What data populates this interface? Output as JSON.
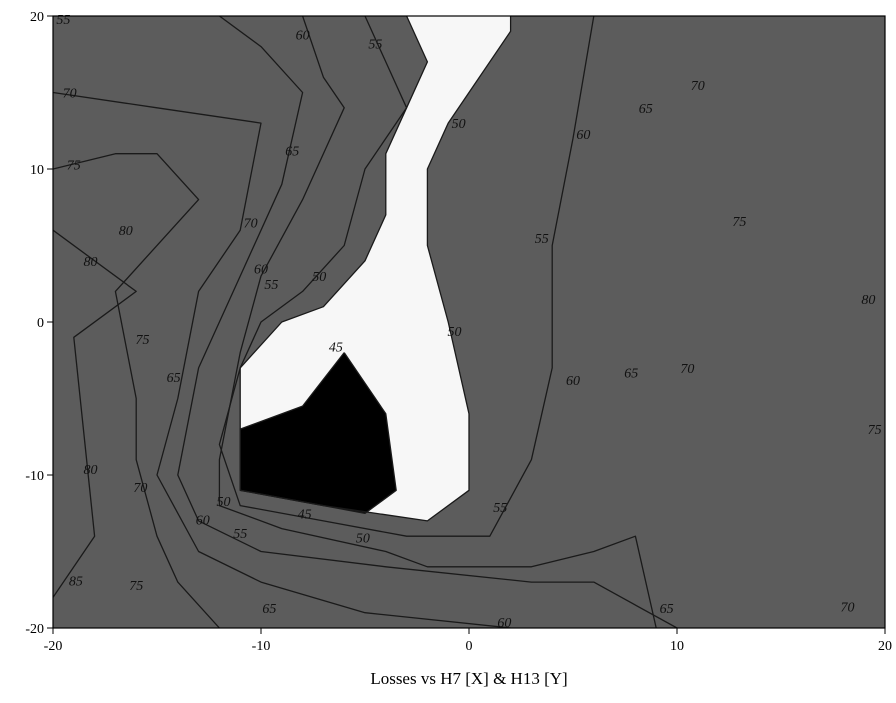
{
  "chart_data": {
    "type": "contour",
    "title": "",
    "xlabel": "Losses vs H7 [X] & H13 [Y]",
    "ylabel": "",
    "xlim": [
      -20,
      20
    ],
    "ylim": [
      -20,
      20
    ],
    "x_ticks": [
      {
        "value": -20,
        "label": "-20"
      },
      {
        "value": -10,
        "label": "-10"
      },
      {
        "value": 0,
        "label": "0"
      },
      {
        "value": 10,
        "label": "10"
      },
      {
        "value": 20,
        "label": "20"
      }
    ],
    "y_ticks": [
      {
        "value": 20,
        "label": "20"
      },
      {
        "value": 10,
        "label": "10"
      },
      {
        "value": 0,
        "label": "0"
      },
      {
        "value": -10,
        "label": "-10"
      },
      {
        "value": -20,
        "label": "-20"
      }
    ],
    "grid": false,
    "legend": "none",
    "levels": [
      45,
      50,
      55,
      60,
      65,
      70,
      75,
      80,
      85
    ],
    "level_colors": [
      "#000000",
      "#5c5c5c",
      "#747474",
      "#8e8e8e",
      "#a9a9a9",
      "#c2c2c2",
      "#d6d6d6",
      "#e8e8e8",
      "#f7f7f7"
    ],
    "contours": [
      {
        "level": 80,
        "points": [
          [
            -20,
            6
          ],
          [
            -16,
            2
          ],
          [
            -19,
            -1
          ],
          [
            -18,
            -14
          ],
          [
            -20,
            -18
          ]
        ]
      },
      {
        "level": 75,
        "points": [
          [
            -20,
            10
          ],
          [
            -17,
            11
          ],
          [
            -15,
            11
          ],
          [
            -13,
            8
          ],
          [
            -17,
            2
          ],
          [
            -16,
            -5
          ],
          [
            -16,
            -9
          ],
          [
            -15,
            -14
          ],
          [
            -14,
            -17
          ],
          [
            -12,
            -20
          ]
        ]
      },
      {
        "level": 70,
        "points": [
          [
            -20,
            15
          ],
          [
            -15,
            14
          ],
          [
            -10,
            13
          ],
          [
            -11,
            6
          ],
          [
            -13,
            2
          ],
          [
            -14,
            -5
          ],
          [
            -15,
            -10
          ],
          [
            -13,
            -15
          ],
          [
            -10,
            -17
          ],
          [
            -5,
            -19
          ],
          [
            2,
            -20
          ]
        ]
      },
      {
        "level": 65,
        "points": [
          [
            -12,
            20
          ],
          [
            -10,
            18
          ],
          [
            -8,
            15
          ],
          [
            -9,
            9
          ],
          [
            -11,
            3
          ],
          [
            -13,
            -3
          ],
          [
            -14,
            -10
          ],
          [
            -13,
            -13
          ],
          [
            -10,
            -15
          ],
          [
            -4,
            -16
          ],
          [
            3,
            -17
          ],
          [
            6,
            -17
          ],
          [
            10,
            -20
          ]
        ]
      },
      {
        "level": 60,
        "points": [
          [
            -8,
            20
          ],
          [
            -7,
            16
          ],
          [
            -6,
            14
          ],
          [
            -8,
            8
          ],
          [
            -10,
            3
          ],
          [
            -11,
            -2
          ],
          [
            -12,
            -9
          ],
          [
            -12,
            -12
          ],
          [
            -9,
            -13.5
          ],
          [
            -4,
            -15
          ],
          [
            -2,
            -16
          ],
          [
            3,
            -16
          ],
          [
            6,
            -15
          ],
          [
            8,
            -14
          ],
          [
            9,
            -20
          ]
        ]
      },
      {
        "level": 55,
        "points": [
          [
            -5,
            20
          ],
          [
            -4,
            17
          ],
          [
            -3,
            14
          ],
          [
            -5,
            10
          ],
          [
            -6,
            5
          ],
          [
            -8,
            2
          ],
          [
            -10,
            0
          ],
          [
            -11,
            -3
          ],
          [
            -12,
            -8
          ],
          [
            -11,
            -12
          ],
          [
            -7,
            -13
          ],
          [
            -3,
            -14
          ],
          [
            1,
            -14
          ],
          [
            3,
            -9
          ],
          [
            4,
            -3
          ],
          [
            4,
            5
          ],
          [
            5,
            12
          ],
          [
            6,
            20
          ]
        ]
      },
      {
        "level": 50,
        "points": [
          [
            -3,
            20
          ],
          [
            -2,
            17
          ],
          [
            -3,
            14
          ],
          [
            -4,
            11
          ],
          [
            -4,
            7
          ],
          [
            -5,
            4
          ],
          [
            -7,
            1
          ],
          [
            -9,
            0
          ],
          [
            -11,
            -3
          ],
          [
            -11,
            -8
          ],
          [
            -11,
            -11
          ],
          [
            -7,
            -12
          ],
          [
            -2,
            -13
          ],
          [
            0,
            -11
          ],
          [
            0,
            -6
          ],
          [
            -1,
            0
          ],
          [
            -2,
            5
          ],
          [
            -2,
            10
          ],
          [
            -1,
            13
          ],
          [
            0,
            15
          ],
          [
            2,
            19
          ],
          [
            2,
            20
          ]
        ]
      },
      {
        "level": 45,
        "points": [
          [
            -6,
            -2
          ],
          [
            -4,
            -6
          ],
          [
            -3.5,
            -11
          ],
          [
            -5,
            -12.5
          ],
          [
            -7,
            -12
          ],
          [
            -11,
            -11
          ],
          [
            -11,
            -7
          ],
          [
            -8,
            -5.5
          ],
          [
            -6,
            -2
          ]
        ]
      }
    ],
    "contour_labels": [
      {
        "text": "55",
        "x": -19.5,
        "y": 19.8
      },
      {
        "text": "60",
        "x": -8,
        "y": 18.8
      },
      {
        "text": "55",
        "x": -4.5,
        "y": 18.2
      },
      {
        "text": "70",
        "x": -19.2,
        "y": 15
      },
      {
        "text": "50",
        "x": -0.5,
        "y": 13
      },
      {
        "text": "65",
        "x": -8.5,
        "y": 11.2
      },
      {
        "text": "60",
        "x": 5.5,
        "y": 12.3
      },
      {
        "text": "65",
        "x": 8.5,
        "y": 14
      },
      {
        "text": "70",
        "x": 11,
        "y": 15.5
      },
      {
        "text": "75",
        "x": -19,
        "y": 10.3
      },
      {
        "text": "80",
        "x": -16.5,
        "y": 6
      },
      {
        "text": "70",
        "x": -10.5,
        "y": 6.5
      },
      {
        "text": "75",
        "x": 13,
        "y": 6.6
      },
      {
        "text": "55",
        "x": 3.5,
        "y": 5.5
      },
      {
        "text": "80",
        "x": -18.2,
        "y": 4
      },
      {
        "text": "60",
        "x": -10,
        "y": 3.5
      },
      {
        "text": "55",
        "x": -9.5,
        "y": 2.5
      },
      {
        "text": "50",
        "x": -7.2,
        "y": 3
      },
      {
        "text": "80",
        "x": 19.2,
        "y": 1.5
      },
      {
        "text": "75",
        "x": -15.7,
        "y": -1.1
      },
      {
        "text": "50",
        "x": -0.7,
        "y": -0.6
      },
      {
        "text": "45",
        "x": -6.4,
        "y": -1.6
      },
      {
        "text": "65",
        "x": -14.2,
        "y": -3.6
      },
      {
        "text": "60",
        "x": 5,
        "y": -3.8
      },
      {
        "text": "65",
        "x": 7.8,
        "y": -3.3
      },
      {
        "text": "70",
        "x": 10.5,
        "y": -3
      },
      {
        "text": "75",
        "x": 19.5,
        "y": -7
      },
      {
        "text": "80",
        "x": -18.2,
        "y": -9.6
      },
      {
        "text": "70",
        "x": -15.8,
        "y": -10.8
      },
      {
        "text": "50",
        "x": -11.8,
        "y": -11.7
      },
      {
        "text": "45",
        "x": -7.9,
        "y": -12.5
      },
      {
        "text": "55",
        "x": 1.5,
        "y": -12.1
      },
      {
        "text": "60",
        "x": -12.8,
        "y": -12.9
      },
      {
        "text": "55",
        "x": -11,
        "y": -13.8
      },
      {
        "text": "50",
        "x": -5.1,
        "y": -14.1
      },
      {
        "text": "85",
        "x": -18.9,
        "y": -16.9
      },
      {
        "text": "75",
        "x": -16,
        "y": -17.2
      },
      {
        "text": "65",
        "x": -9.6,
        "y": -18.7
      },
      {
        "text": "60",
        "x": 1.7,
        "y": -19.6
      },
      {
        "text": "65",
        "x": 9.5,
        "y": -18.7
      },
      {
        "text": "70",
        "x": 18.2,
        "y": -18.6
      }
    ]
  }
}
